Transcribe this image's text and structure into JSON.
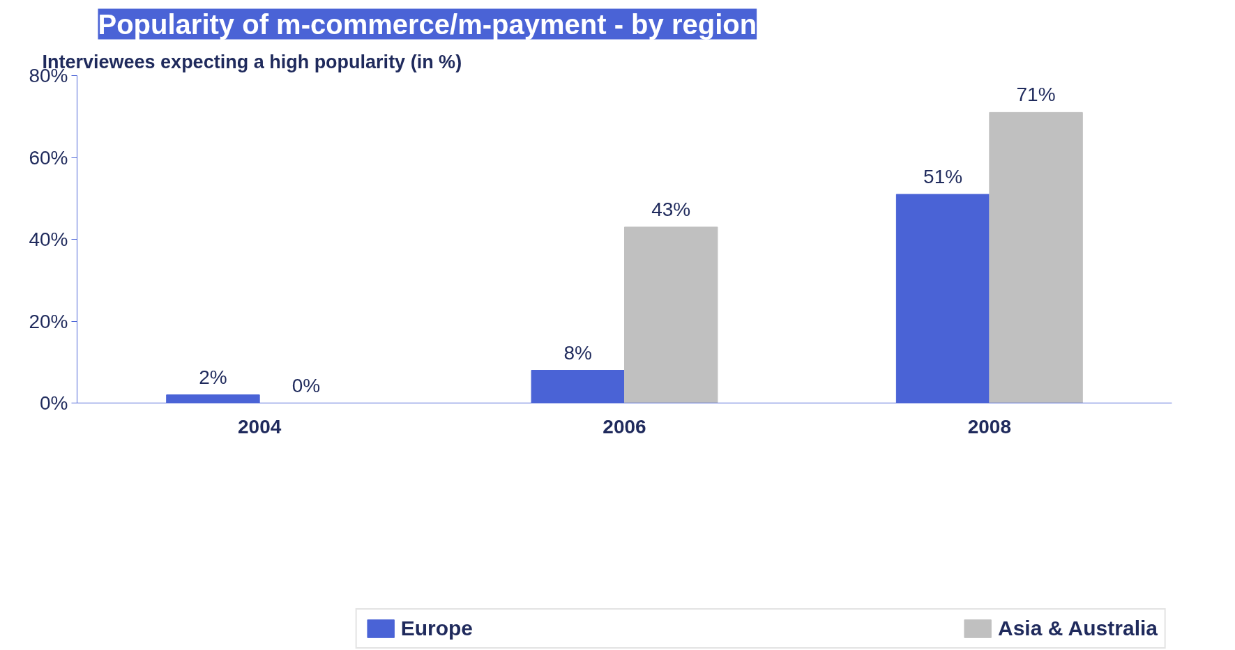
{
  "chart_data": {
    "type": "bar",
    "title": "Popularity of m-commerce/m-payment - by region",
    "subtitle": "Interviewees expecting a high popularity (in %)",
    "categories": [
      "2004",
      "2006",
      "2008"
    ],
    "series": [
      {
        "name": "Europe",
        "color": "#4a63d6",
        "values": [
          2,
          8,
          51
        ],
        "value_labels": [
          "2%",
          "8%",
          "51%"
        ]
      },
      {
        "name": "Asia & Australia",
        "color": "#c0c0c0",
        "values": [
          0,
          43,
          71
        ],
        "value_labels": [
          "0%",
          "43%",
          "71%"
        ]
      }
    ],
    "ylim": [
      0,
      80
    ],
    "yticks": [
      {
        "value": 0,
        "label": "0%"
      },
      {
        "value": 20,
        "label": "20%"
      },
      {
        "value": 40,
        "label": "40%"
      },
      {
        "value": 60,
        "label": "60%"
      },
      {
        "value": 80,
        "label": "80%"
      }
    ],
    "grid": false,
    "legend": "bottom"
  }
}
